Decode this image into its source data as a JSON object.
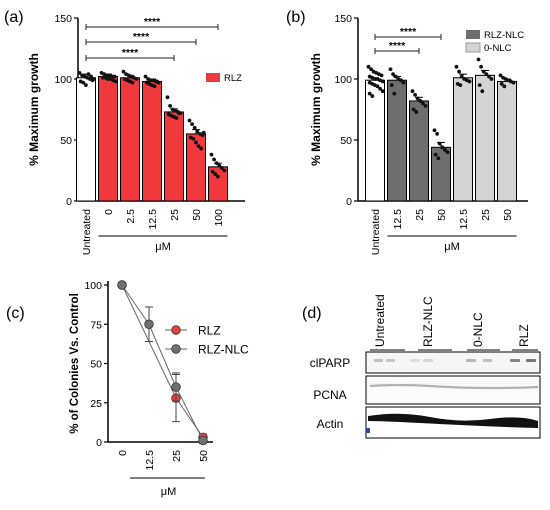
{
  "panels": {
    "a": {
      "label": "(a)",
      "chart_data": {
        "type": "bar",
        "ylabel": "% Maximum growth",
        "ylim": [
          0,
          150
        ],
        "yticks": [
          0,
          50,
          100,
          150
        ],
        "categories": [
          "Untreated",
          "0",
          "2.5",
          "12.5",
          "25",
          "50",
          "100"
        ],
        "values": [
          101,
          102,
          101,
          98,
          73,
          55,
          28
        ],
        "errors": [
          3,
          2,
          2,
          2,
          2.5,
          3.5,
          3
        ],
        "bar_colors": [
          "#ffffff",
          "#f0393c",
          "#f0393c",
          "#f0393c",
          "#f0393c",
          "#f0393c",
          "#f0393c"
        ],
        "points": [
          [
            105,
            103,
            102,
            101,
            100,
            99,
            98,
            97,
            95,
            104,
            102,
            100
          ],
          [
            105,
            104,
            103,
            103,
            102,
            102,
            101,
            101,
            100,
            100,
            99,
            98
          ],
          [
            106,
            104,
            103,
            102,
            101,
            100,
            100,
            99,
            98,
            97
          ],
          [
            102,
            100,
            99,
            99,
            98,
            97,
            97,
            96,
            95,
            94,
            98
          ],
          [
            85,
            78,
            75,
            74,
            73,
            72,
            71,
            70,
            69,
            68,
            72
          ],
          [
            66,
            63,
            60,
            57,
            55,
            54,
            52,
            51,
            48,
            45,
            43,
            56
          ],
          [
            38,
            34,
            31,
            29,
            27,
            25,
            24,
            22,
            20
          ]
        ],
        "legend": [
          {
            "name": "RLZ",
            "color": "#f0393c"
          }
        ],
        "legend_position": "top-right",
        "significance": [
          {
            "from": 0,
            "to": 6,
            "label": "****"
          },
          {
            "from": 0,
            "to": 5,
            "label": "****"
          },
          {
            "from": 0,
            "to": 4,
            "label": "****"
          }
        ],
        "xgroup_label": "μM",
        "xgroup_from": 1,
        "xgroup_to": 6
      }
    },
    "b": {
      "label": "(b)",
      "chart_data": {
        "type": "bar",
        "ylabel": "% Maximum growth",
        "ylim": [
          0,
          150
        ],
        "yticks": [
          0,
          50,
          100,
          150
        ],
        "categories": [
          "Untreated",
          "12.5",
          "25",
          "50",
          "12.5",
          "25",
          "50"
        ],
        "values": [
          99,
          99,
          82,
          44,
          101,
          103,
          98
        ],
        "errors": [
          2,
          3,
          3,
          4,
          3,
          4,
          2
        ],
        "bar_colors": [
          "#ffffff",
          "#6e6e6e",
          "#6e6e6e",
          "#6e6e6e",
          "#d4d4d4",
          "#d4d4d4",
          "#d4d4d4"
        ],
        "points": [
          [
            110,
            108,
            106,
            105,
            104,
            103,
            102,
            101,
            100,
            100,
            99,
            98,
            97,
            96,
            95,
            94,
            92,
            90,
            88,
            86
          ],
          [
            108,
            104,
            102,
            100,
            99,
            97,
            95,
            88
          ],
          [
            90,
            87,
            84,
            82,
            80,
            78,
            75,
            73
          ],
          [
            58,
            55,
            47,
            44,
            42,
            40,
            38,
            35
          ],
          [
            110,
            106,
            102,
            100,
            99,
            98,
            96,
            95
          ],
          [
            116,
            110,
            106,
            104,
            102,
            100,
            95,
            90
          ],
          [
            103,
            101,
            100,
            99,
            98,
            97,
            96,
            94
          ]
        ],
        "legend": [
          {
            "name": "RLZ-NLC",
            "color": "#6e6e6e"
          },
          {
            "name": "0-NLC",
            "color": "#d4d4d4"
          }
        ],
        "legend_position": "top-right",
        "significance": [
          {
            "from": 0,
            "to": 3,
            "label": "****"
          },
          {
            "from": 0,
            "to": 2,
            "label": "****"
          }
        ],
        "xgroup_label": "μM",
        "xgroup_from": 1,
        "xgroup_to": 6
      }
    },
    "c": {
      "label": "(c)",
      "chart_data": {
        "type": "line",
        "ylabel": "% of Colonies Vs. Control",
        "ylim": [
          0,
          100
        ],
        "yticks": [
          0,
          25,
          50,
          75,
          100
        ],
        "categories": [
          "0",
          "12.5",
          "25",
          "50"
        ],
        "series": [
          {
            "name": "RLZ",
            "color": "#e8403f",
            "values": [
              100,
              null,
              28,
              3
            ],
            "errors": [
              0,
              null,
              15,
              2
            ]
          },
          {
            "name": "RLZ-NLC",
            "color": "#707070",
            "values": [
              100,
              75,
              35,
              1
            ],
            "errors": [
              0,
              11,
              9,
              2
            ]
          }
        ],
        "legend_position": "center-right",
        "xgroup_label": "μM"
      }
    },
    "d": {
      "label": "(d)",
      "lanes": [
        "Untreated",
        "RLZ-NLC",
        "0-NLC",
        "RLZ"
      ],
      "rows": [
        "clPARP",
        "PCNA",
        "Actin"
      ]
    }
  }
}
